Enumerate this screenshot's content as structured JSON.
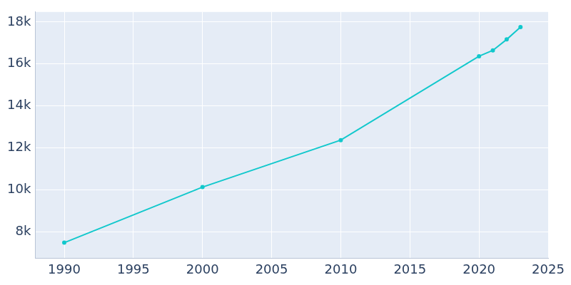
{
  "chart_data": {
    "type": "line",
    "x": [
      1990,
      2000,
      2010,
      2020,
      2021,
      2022,
      2023
    ],
    "values": [
      7480,
      10130,
      12370,
      16370,
      16650,
      17170,
      17760
    ],
    "color": "#12c8cc",
    "marker": "circle",
    "xlim": [
      1987.9,
      2025
    ],
    "xticks": [
      1990,
      1995,
      2000,
      2005,
      2010,
      2015,
      2020,
      2025
    ],
    "ylim": [
      6740,
      18480
    ],
    "yticks": [
      {
        "value": 8000,
        "label": "8k"
      },
      {
        "value": 10000,
        "label": "10k"
      },
      {
        "value": 12000,
        "label": "12k"
      },
      {
        "value": 14000,
        "label": "14k"
      },
      {
        "value": 16000,
        "label": "16k"
      },
      {
        "value": 18000,
        "label": "18k"
      }
    ],
    "grid": true
  }
}
